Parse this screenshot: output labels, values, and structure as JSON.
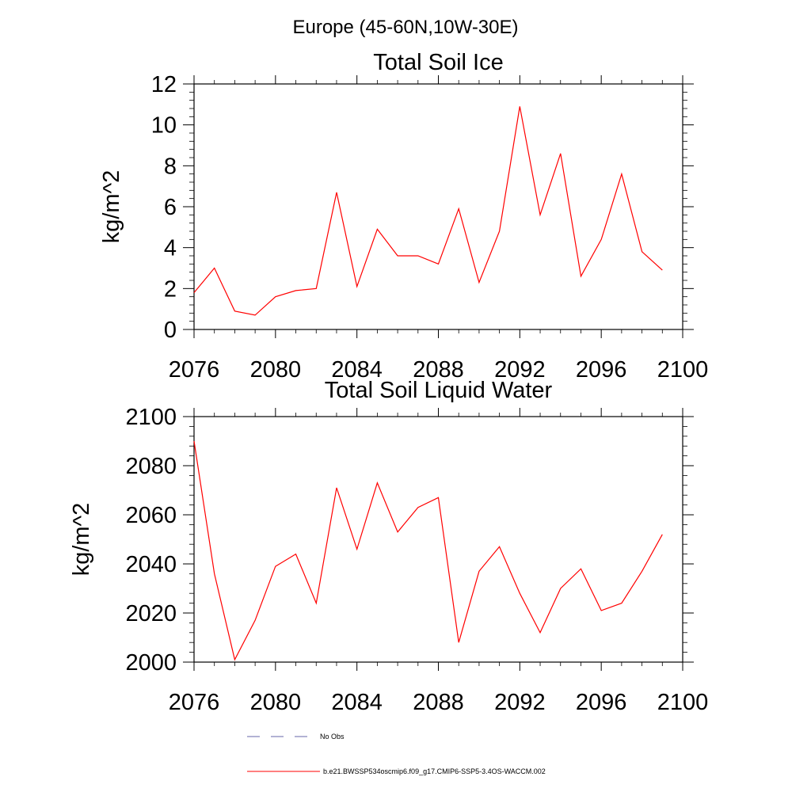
{
  "figure": {
    "title": "Europe (45-60N,10W-30E)"
  },
  "chart_data": [
    {
      "type": "line",
      "title": "Total Soil Ice",
      "xlabel": "",
      "ylabel": "kg/m^2",
      "xlim": [
        2076,
        2100
      ],
      "ylim": [
        0,
        12
      ],
      "x_ticks": [
        2076,
        2080,
        2084,
        2088,
        2092,
        2096,
        2100
      ],
      "x_tick_labels": [
        "2076",
        "2080",
        "2084",
        "2088",
        "2092",
        "2096",
        "2100"
      ],
      "y_ticks": [
        0,
        2,
        4,
        6,
        8,
        10,
        12
      ],
      "y_tick_labels": [
        "0",
        "2",
        "4",
        "6",
        "8",
        "10",
        "12"
      ],
      "grid": false,
      "series": [
        {
          "name": "b.e21.BWSSP534oscmip6.f09_g17.CMIP6-SSP5-3.4OS-WACCM.002",
          "color": "#ff0000",
          "x": [
            2076,
            2077,
            2078,
            2079,
            2080,
            2081,
            2082,
            2083,
            2084,
            2085,
            2086,
            2087,
            2088,
            2089,
            2090,
            2091,
            2092,
            2093,
            2094,
            2095,
            2096,
            2097,
            2098,
            2099
          ],
          "y": [
            1.8,
            3.0,
            0.9,
            0.7,
            1.6,
            1.9,
            2.0,
            6.7,
            2.1,
            4.9,
            3.6,
            3.6,
            3.2,
            5.9,
            2.3,
            4.8,
            10.9,
            5.6,
            8.6,
            2.6,
            4.4,
            7.6,
            3.8,
            2.9
          ]
        }
      ]
    },
    {
      "type": "line",
      "title": "Total Soil Liquid Water",
      "xlabel": "",
      "ylabel": "kg/m^2",
      "xlim": [
        2076,
        2100
      ],
      "ylim": [
        2000,
        2100
      ],
      "x_ticks": [
        2076,
        2080,
        2084,
        2088,
        2092,
        2096,
        2100
      ],
      "x_tick_labels": [
        "2076",
        "2080",
        "2084",
        "2088",
        "2092",
        "2096",
        "2100"
      ],
      "y_ticks": [
        2000,
        2020,
        2040,
        2060,
        2080,
        2100
      ],
      "y_tick_labels": [
        "2000",
        "2020",
        "2040",
        "2060",
        "2080",
        "2100"
      ],
      "grid": false,
      "series": [
        {
          "name": "b.e21.BWSSP534oscmip6.f09_g17.CMIP6-SSP5-3.4OS-WACCM.002",
          "color": "#ff0000",
          "x": [
            2076,
            2077,
            2078,
            2079,
            2080,
            2081,
            2082,
            2083,
            2084,
            2085,
            2086,
            2087,
            2088,
            2089,
            2090,
            2091,
            2092,
            2093,
            2094,
            2095,
            2096,
            2097,
            2098,
            2099
          ],
          "y": [
            2090,
            2036,
            2001,
            2017,
            2039,
            2044,
            2024,
            2071,
            2046,
            2073,
            2053,
            2063,
            2067,
            2008,
            2037,
            2047,
            2028,
            2012,
            2030,
            2038,
            2021,
            2024,
            2037,
            2052
          ]
        }
      ]
    }
  ],
  "legend": {
    "items": [
      {
        "label": "No Obs",
        "color": "#6666aa",
        "style": "dashed"
      },
      {
        "label": "b.e21.BWSSP534oscmip6.f09_g17.CMIP6-SSP5-3.4OS-WACCM.002",
        "color": "#ff0000",
        "style": "solid"
      }
    ]
  }
}
